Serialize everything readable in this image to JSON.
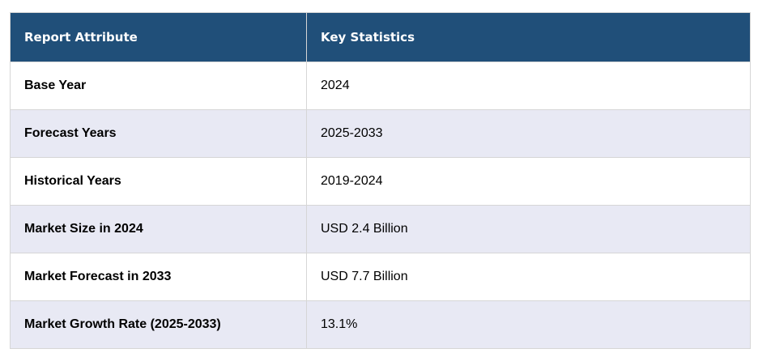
{
  "header": {
    "attribute": "Report Attribute",
    "statistics": "Key Statistics"
  },
  "rows": [
    {
      "attribute": "Base Year",
      "value": "2024"
    },
    {
      "attribute": "Forecast Years",
      "value": "2025-2033"
    },
    {
      "attribute": "Historical Years",
      "value": "2019-2024"
    },
    {
      "attribute": "Market Size in 2024",
      "value": "USD 2.4 Billion"
    },
    {
      "attribute": "Market Forecast in 2033",
      "value": "USD 7.7 Billion"
    },
    {
      "attribute": "Market Growth Rate (2025-2033)",
      "value": "13.1%"
    }
  ],
  "colors": {
    "header_bg": "#204f79",
    "alt_row_bg": "#e8e9f4"
  }
}
